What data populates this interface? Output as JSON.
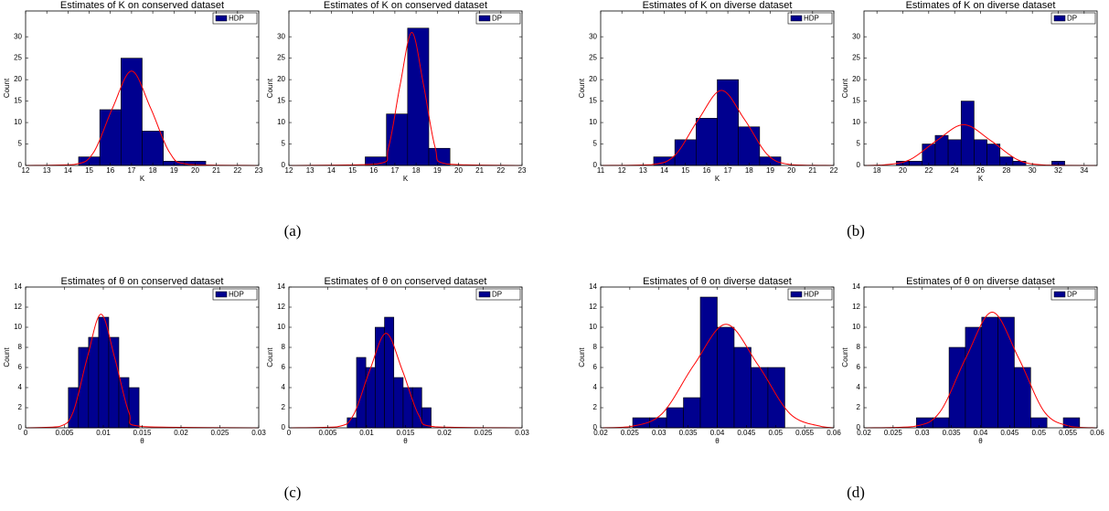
{
  "panel_labels": [
    "(a)",
    "(b)",
    "(c)",
    "(d)"
  ],
  "chart_data": [
    {
      "type": "histogram",
      "title": "Estimates of K on conserved dataset",
      "xlabel": "K",
      "ylabel": "Count",
      "bins": [
        14.5,
        15.5,
        16.5,
        17.5,
        18.5,
        19.5,
        20.5
      ],
      "series": [
        {
          "name": "HDP",
          "color": "#00008f",
          "values": [
            2,
            13,
            25,
            8,
            1,
            1
          ]
        }
      ],
      "curve": {
        "color": "#ff0000",
        "x": [
          12,
          14.3,
          15.2,
          16.1,
          17,
          17.9,
          18.8,
          19.7,
          23
        ],
        "y": [
          0,
          0.24,
          2.98,
          13.35,
          22,
          13.35,
          2.98,
          0.24,
          0
        ]
      },
      "xlim": [
        12,
        23
      ],
      "xticks": [
        12,
        13,
        14,
        15,
        16,
        17,
        18,
        19,
        20,
        21,
        22,
        23
      ],
      "ylim": [
        0,
        36
      ],
      "yticks": [
        0,
        5,
        10,
        15,
        20,
        25,
        30
      ],
      "legend": "upper right"
    },
    {
      "type": "histogram",
      "title": "Estimates of K on conserved dataset",
      "xlabel": "K",
      "ylabel": "Count",
      "bins": [
        15.6,
        16.6,
        17.6,
        18.6,
        19.6
      ],
      "series": [
        {
          "name": "DP",
          "color": "#00008f",
          "values": [
            2,
            12,
            32,
            4
          ]
        }
      ],
      "curve": {
        "color": "#ff0000",
        "x": [
          12,
          16.15,
          16.7,
          17.25,
          17.8,
          18.35,
          18.9,
          19.45,
          23
        ],
        "y": [
          0,
          0.34,
          4.19,
          18.82,
          31,
          18.82,
          4.19,
          0.34,
          0
        ]
      },
      "xlim": [
        12,
        23
      ],
      "xticks": [
        12,
        13,
        14,
        15,
        16,
        17,
        18,
        19,
        20,
        21,
        22,
        23
      ],
      "ylim": [
        0,
        36
      ],
      "yticks": [
        0,
        5,
        10,
        15,
        20,
        25,
        30
      ],
      "legend": "upper right"
    },
    {
      "type": "histogram",
      "title": "Estimates of K on diverse dataset",
      "xlabel": "K",
      "ylabel": "Count",
      "bins": [
        13.5,
        14.5,
        15.5,
        16.5,
        17.5,
        18.5,
        19.5
      ],
      "series": [
        {
          "name": "HDP",
          "color": "#00008f",
          "values": [
            2,
            6,
            11,
            20,
            9,
            2
          ]
        }
      ],
      "curve": {
        "color": "#ff0000",
        "x": [
          11,
          13.4,
          14.5,
          15.6,
          16.7,
          17.8,
          18.9,
          20,
          22
        ],
        "y": [
          0,
          0.19,
          2.36,
          10.62,
          17.5,
          10.62,
          2.36,
          0.19,
          0
        ]
      },
      "xlim": [
        11,
        22
      ],
      "xticks": [
        11,
        12,
        13,
        14,
        15,
        16,
        17,
        18,
        19,
        20,
        21,
        22
      ],
      "ylim": [
        0,
        36
      ],
      "yticks": [
        0,
        5,
        10,
        15,
        20,
        25,
        30
      ],
      "legend": "upper right"
    },
    {
      "type": "histogram",
      "title": "Estimates of K on diverse dataset",
      "xlabel": "K",
      "ylabel": "Count",
      "bins": [
        19.5,
        20.5,
        21.5,
        22.5,
        23.5,
        24.5,
        25.5,
        26.5,
        27.5,
        28.5,
        29.5,
        30.5,
        31.5,
        32.5
      ],
      "series": [
        {
          "name": "DP",
          "color": "#00008f",
          "values": [
            1,
            1,
            5,
            7,
            6,
            15,
            6,
            5,
            2,
            1,
            0,
            0,
            1
          ]
        }
      ],
      "curve": {
        "color": "#ff0000",
        "x": [
          17,
          18.4,
          20.5,
          22.6,
          24.7,
          26.8,
          28.9,
          31,
          35
        ],
        "y": [
          0,
          0.1,
          1.28,
          5.77,
          9.5,
          5.77,
          1.28,
          0.1,
          0
        ]
      },
      "xlim": [
        17,
        35
      ],
      "xticks": [
        18,
        20,
        22,
        24,
        26,
        28,
        30,
        32,
        34
      ],
      "ylim": [
        0,
        36
      ],
      "yticks": [
        0,
        5,
        10,
        15,
        20,
        25,
        30
      ],
      "legend": "upper right"
    },
    {
      "type": "histogram",
      "title": "Estimates of θ on conserved dataset",
      "xlabel": "θ",
      "ylabel": "Count",
      "bins": [
        0.0055,
        0.0068,
        0.0081,
        0.0094,
        0.0107,
        0.012,
        0.0133,
        0.0146
      ],
      "series": [
        {
          "name": "HDP",
          "color": "#00008f",
          "values": [
            4,
            8,
            9,
            11,
            9,
            5,
            4
          ]
        }
      ],
      "curve": {
        "color": "#ff0000",
        "x": [
          0,
          0.0043,
          0.0061,
          0.0079,
          0.0097,
          0.0115,
          0.0133,
          0.0151,
          0.03
        ],
        "y": [
          0,
          0.12,
          1.53,
          6.86,
          11.3,
          6.86,
          1.53,
          0.12,
          0
        ]
      },
      "xlim": [
        0,
        0.03
      ],
      "xticks": [
        0,
        0.005,
        0.01,
        0.015,
        0.02,
        0.025,
        0.03
      ],
      "ylim": [
        0,
        14
      ],
      "yticks": [
        0,
        2,
        4,
        6,
        8,
        10,
        12,
        14
      ],
      "legend": "upper right"
    },
    {
      "type": "histogram",
      "title": "Estimates of θ on conserved dataset",
      "xlabel": "θ",
      "ylabel": "Count",
      "bins": [
        0.0075,
        0.0087,
        0.0099,
        0.0111,
        0.0123,
        0.0135,
        0.0147,
        0.0159,
        0.0171,
        0.0183
      ],
      "series": [
        {
          "name": "DP",
          "color": "#00008f",
          "values": [
            1,
            7,
            6,
            10,
            11,
            5,
            4,
            4,
            2
          ]
        }
      ],
      "curve": {
        "color": "#ff0000",
        "x": [
          0,
          0.0062,
          0.0083,
          0.0104,
          0.0125,
          0.0146,
          0.0167,
          0.0188,
          0.03
        ],
        "y": [
          0,
          0.1,
          1.27,
          5.71,
          9.4,
          5.71,
          1.27,
          0.1,
          0
        ]
      },
      "xlim": [
        0,
        0.03
      ],
      "xticks": [
        0,
        0.005,
        0.01,
        0.015,
        0.02,
        0.025,
        0.03
      ],
      "ylim": [
        0,
        14
      ],
      "yticks": [
        0,
        2,
        4,
        6,
        8,
        10,
        12,
        14
      ],
      "legend": "upper right"
    },
    {
      "type": "histogram",
      "title": "Estimates of θ on diverse dataset",
      "xlabel": "θ",
      "ylabel": "Count",
      "bins": [
        0.0255,
        0.0284,
        0.0313,
        0.0342,
        0.0371,
        0.04,
        0.0429,
        0.0458,
        0.0487,
        0.0516
      ],
      "series": [
        {
          "name": "HDP",
          "color": "#00008f",
          "values": [
            1,
            1,
            2,
            3,
            13,
            10,
            8,
            6,
            6
          ]
        }
      ],
      "curve": {
        "color": "#ff0000",
        "x": [
          0.02,
          0.025,
          0.0305,
          0.036,
          0.0415,
          0.047,
          0.0525,
          0.058,
          0.06
        ],
        "y": [
          0,
          0.11,
          1.39,
          6.25,
          10.3,
          6.25,
          1.39,
          0.11,
          0
        ]
      },
      "xlim": [
        0.02,
        0.06
      ],
      "xticks": [
        0.02,
        0.025,
        0.03,
        0.035,
        0.04,
        0.045,
        0.05,
        0.055,
        0.06
      ],
      "ylim": [
        0,
        14
      ],
      "yticks": [
        0,
        2,
        4,
        6,
        8,
        10,
        12,
        14
      ],
      "legend": "upper right"
    },
    {
      "type": "histogram",
      "title": "Estimates of θ on diverse dataset",
      "xlabel": "θ",
      "ylabel": "Count",
      "bins": [
        0.029,
        0.0318,
        0.0346,
        0.0374,
        0.0402,
        0.043,
        0.0458,
        0.0486,
        0.0514,
        0.0542,
        0.057
      ],
      "series": [
        {
          "name": "DP",
          "color": "#00008f",
          "values": [
            1,
            1,
            8,
            10,
            11,
            11,
            6,
            1,
            0,
            1
          ]
        }
      ],
      "curve": {
        "color": "#ff0000",
        "x": [
          0.02,
          0.0285,
          0.033,
          0.0375,
          0.042,
          0.0465,
          0.051,
          0.0555,
          0.06
        ],
        "y": [
          0,
          0.13,
          1.55,
          6.98,
          11.5,
          6.98,
          1.55,
          0.13,
          0
        ]
      },
      "xlim": [
        0.02,
        0.06
      ],
      "xticks": [
        0.02,
        0.025,
        0.03,
        0.035,
        0.04,
        0.045,
        0.05,
        0.055,
        0.06
      ],
      "ylim": [
        0,
        14
      ],
      "yticks": [
        0,
        2,
        4,
        6,
        8,
        10,
        12,
        14
      ],
      "legend": "upper right"
    }
  ]
}
